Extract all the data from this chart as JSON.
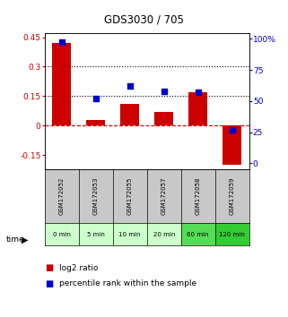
{
  "title": "GDS3030 / 705",
  "categories": [
    "GSM172052",
    "GSM172053",
    "GSM172055",
    "GSM172057",
    "GSM172058",
    "GSM172059"
  ],
  "time_labels": [
    "0 min",
    "5 min",
    "10 min",
    "20 min",
    "60 min",
    "120 min"
  ],
  "log2_ratio": [
    0.42,
    0.03,
    0.11,
    0.07,
    0.17,
    -0.2
  ],
  "percentile_rank": [
    97,
    52,
    62,
    58,
    57,
    27
  ],
  "ylim_left": [
    -0.22,
    0.47
  ],
  "ylim_right": [
    -4.4,
    104.4
  ],
  "yticks_left": [
    -0.15,
    0.0,
    0.15,
    0.3,
    0.45
  ],
  "yticks_right": [
    0,
    25,
    50,
    75,
    100
  ],
  "bar_color": "#cc0000",
  "scatter_color": "#0000cc",
  "time_colors": [
    "#ccffcc",
    "#ccffcc",
    "#ccffcc",
    "#ccffcc",
    "#55dd55",
    "#33cc33"
  ],
  "gsm_bg": "#c8c8c8",
  "legend_red": "log2 ratio",
  "legend_blue": "percentile rank within the sample"
}
